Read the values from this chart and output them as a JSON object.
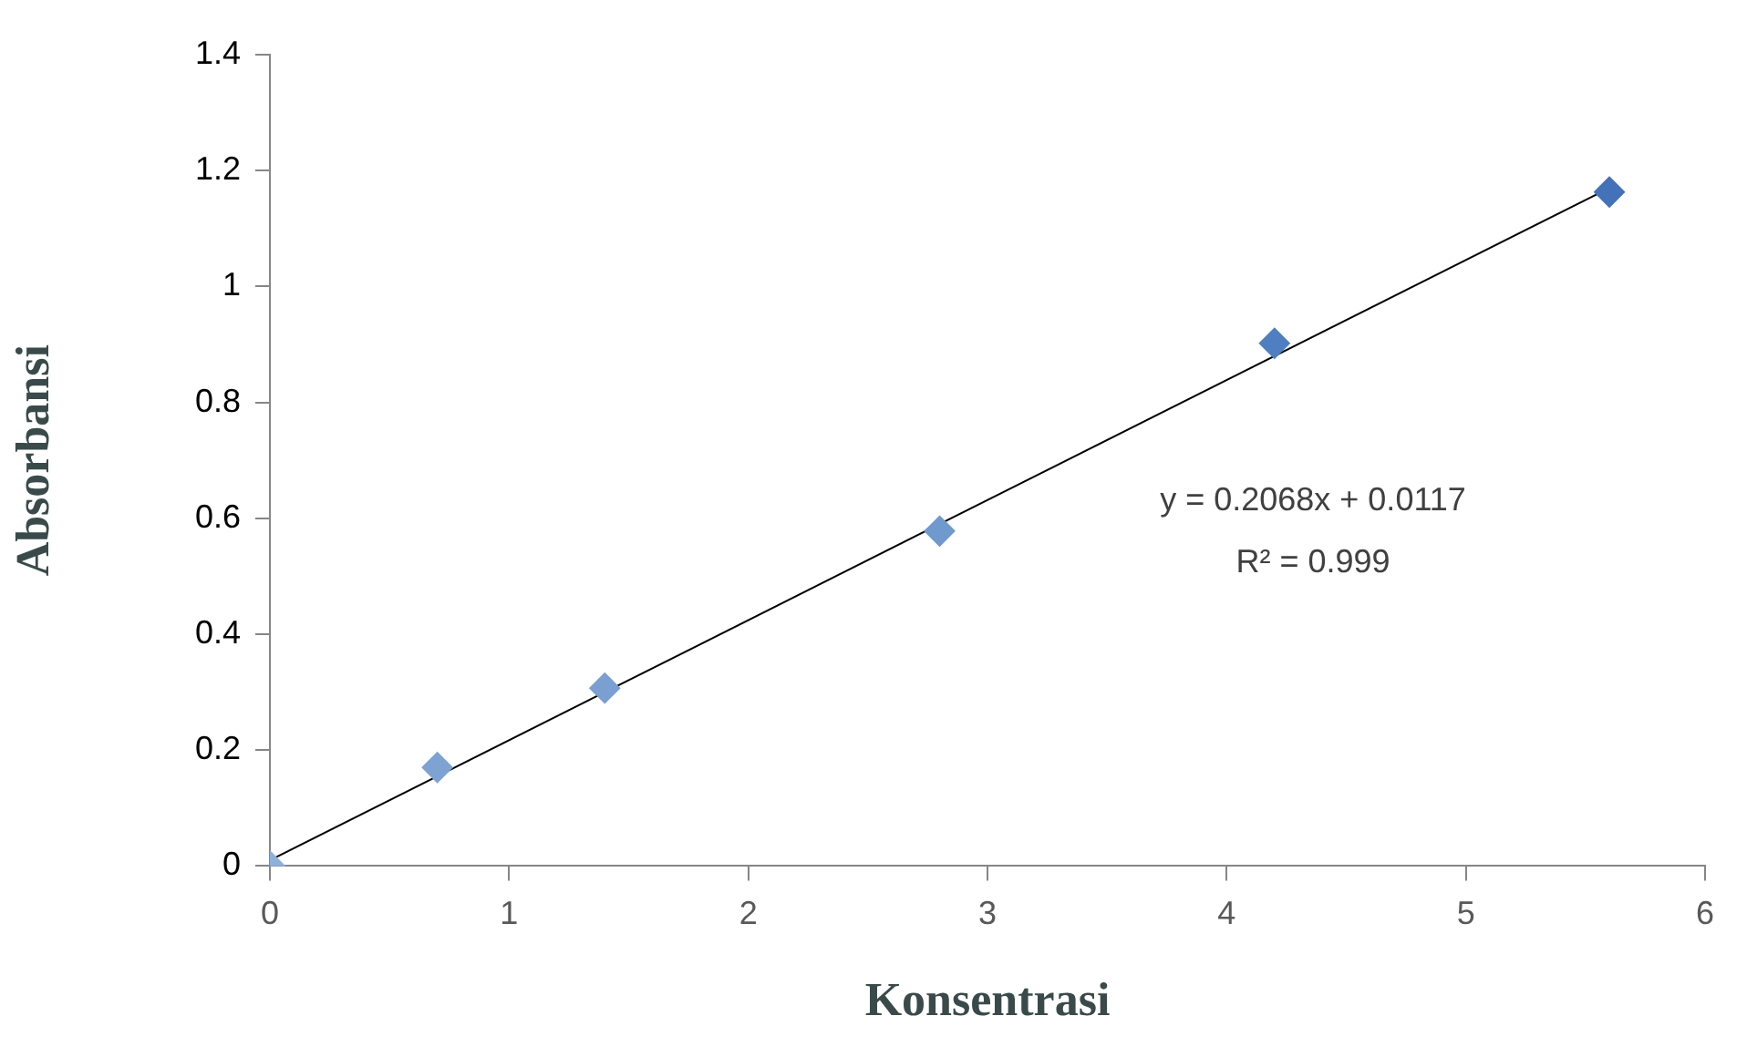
{
  "chart_data": {
    "type": "scatter",
    "xlabel": "Konsentrasi",
    "ylabel": "Absorbansi",
    "xlim": [
      0,
      6
    ],
    "xticks": [
      0,
      1,
      2,
      3,
      4,
      5,
      6
    ],
    "ylim": [
      0,
      1.4
    ],
    "yticks": [
      0,
      0.2,
      0.4,
      0.6,
      0.8,
      1,
      1.2,
      1.4
    ],
    "grid": false,
    "legend": false,
    "series": [
      {
        "marker": "diamond",
        "x": [
          0,
          0.7,
          1.4,
          2.8,
          4.2,
          5.6
        ],
        "values": [
          0,
          0.17,
          0.307,
          0.578,
          0.902,
          1.163
        ],
        "colors": [
          "#8fb0d9",
          "#7ea3d2",
          "#7a9fd0",
          "#7099cd",
          "#4f7fc0",
          "#4472b8"
        ]
      },
      {
        "type": "line",
        "x": [
          0,
          5.6
        ],
        "values": [
          0.01,
          1.17
        ],
        "color": "#000000",
        "line_style": "solid"
      }
    ],
    "annotations": [
      "y = 0.2068x + 0.0117",
      "R² = 0.999"
    ]
  }
}
